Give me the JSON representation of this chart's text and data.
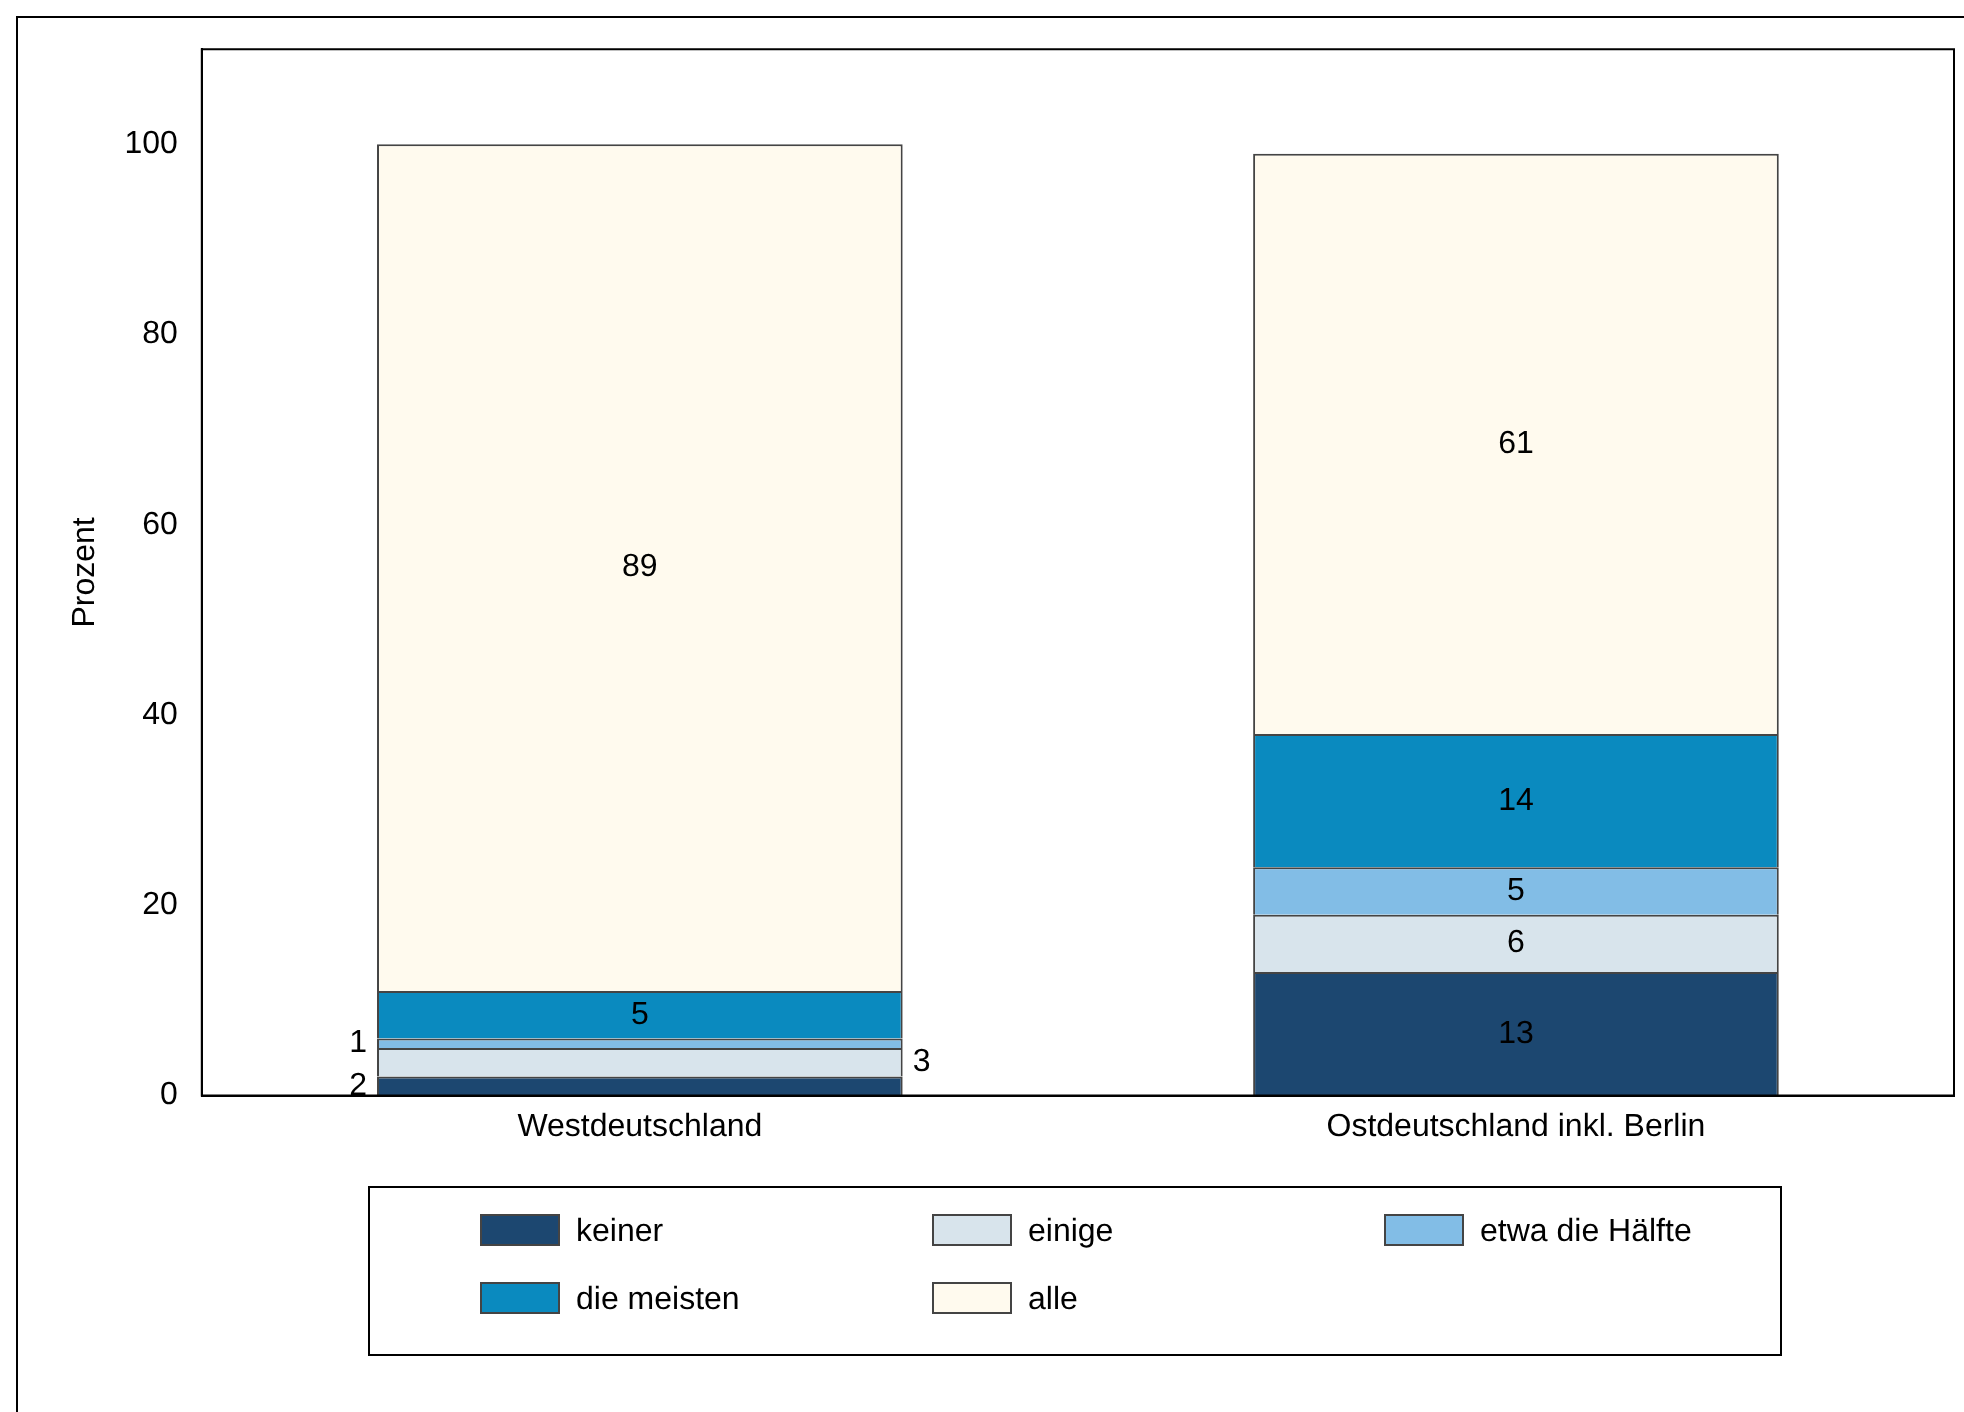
{
  "chart_data": {
    "type": "bar",
    "stacked": true,
    "ylabel": "Prozent",
    "categories": [
      "Westdeutschland",
      "Ostdeutschland inkl. Berlin"
    ],
    "series": [
      {
        "name": "keiner",
        "color": "#1c4770",
        "values": [
          2,
          13
        ]
      },
      {
        "name": "einige",
        "color": "#d8e4ec",
        "values": [
          3,
          6
        ]
      },
      {
        "name": "etwa die Hälfte",
        "color": "#82bde6",
        "values": [
          1,
          5
        ]
      },
      {
        "name": "die meisten",
        "color": "#0a8abf",
        "values": [
          5,
          14
        ]
      },
      {
        "name": "alle",
        "color": "#fffaee",
        "values": [
          89,
          61
        ]
      }
    ],
    "ylim": [
      0,
      110
    ],
    "yticks": [
      0,
      20,
      40,
      60,
      80,
      100
    ],
    "grid": false,
    "legend": "bottom",
    "data_labels": true
  }
}
